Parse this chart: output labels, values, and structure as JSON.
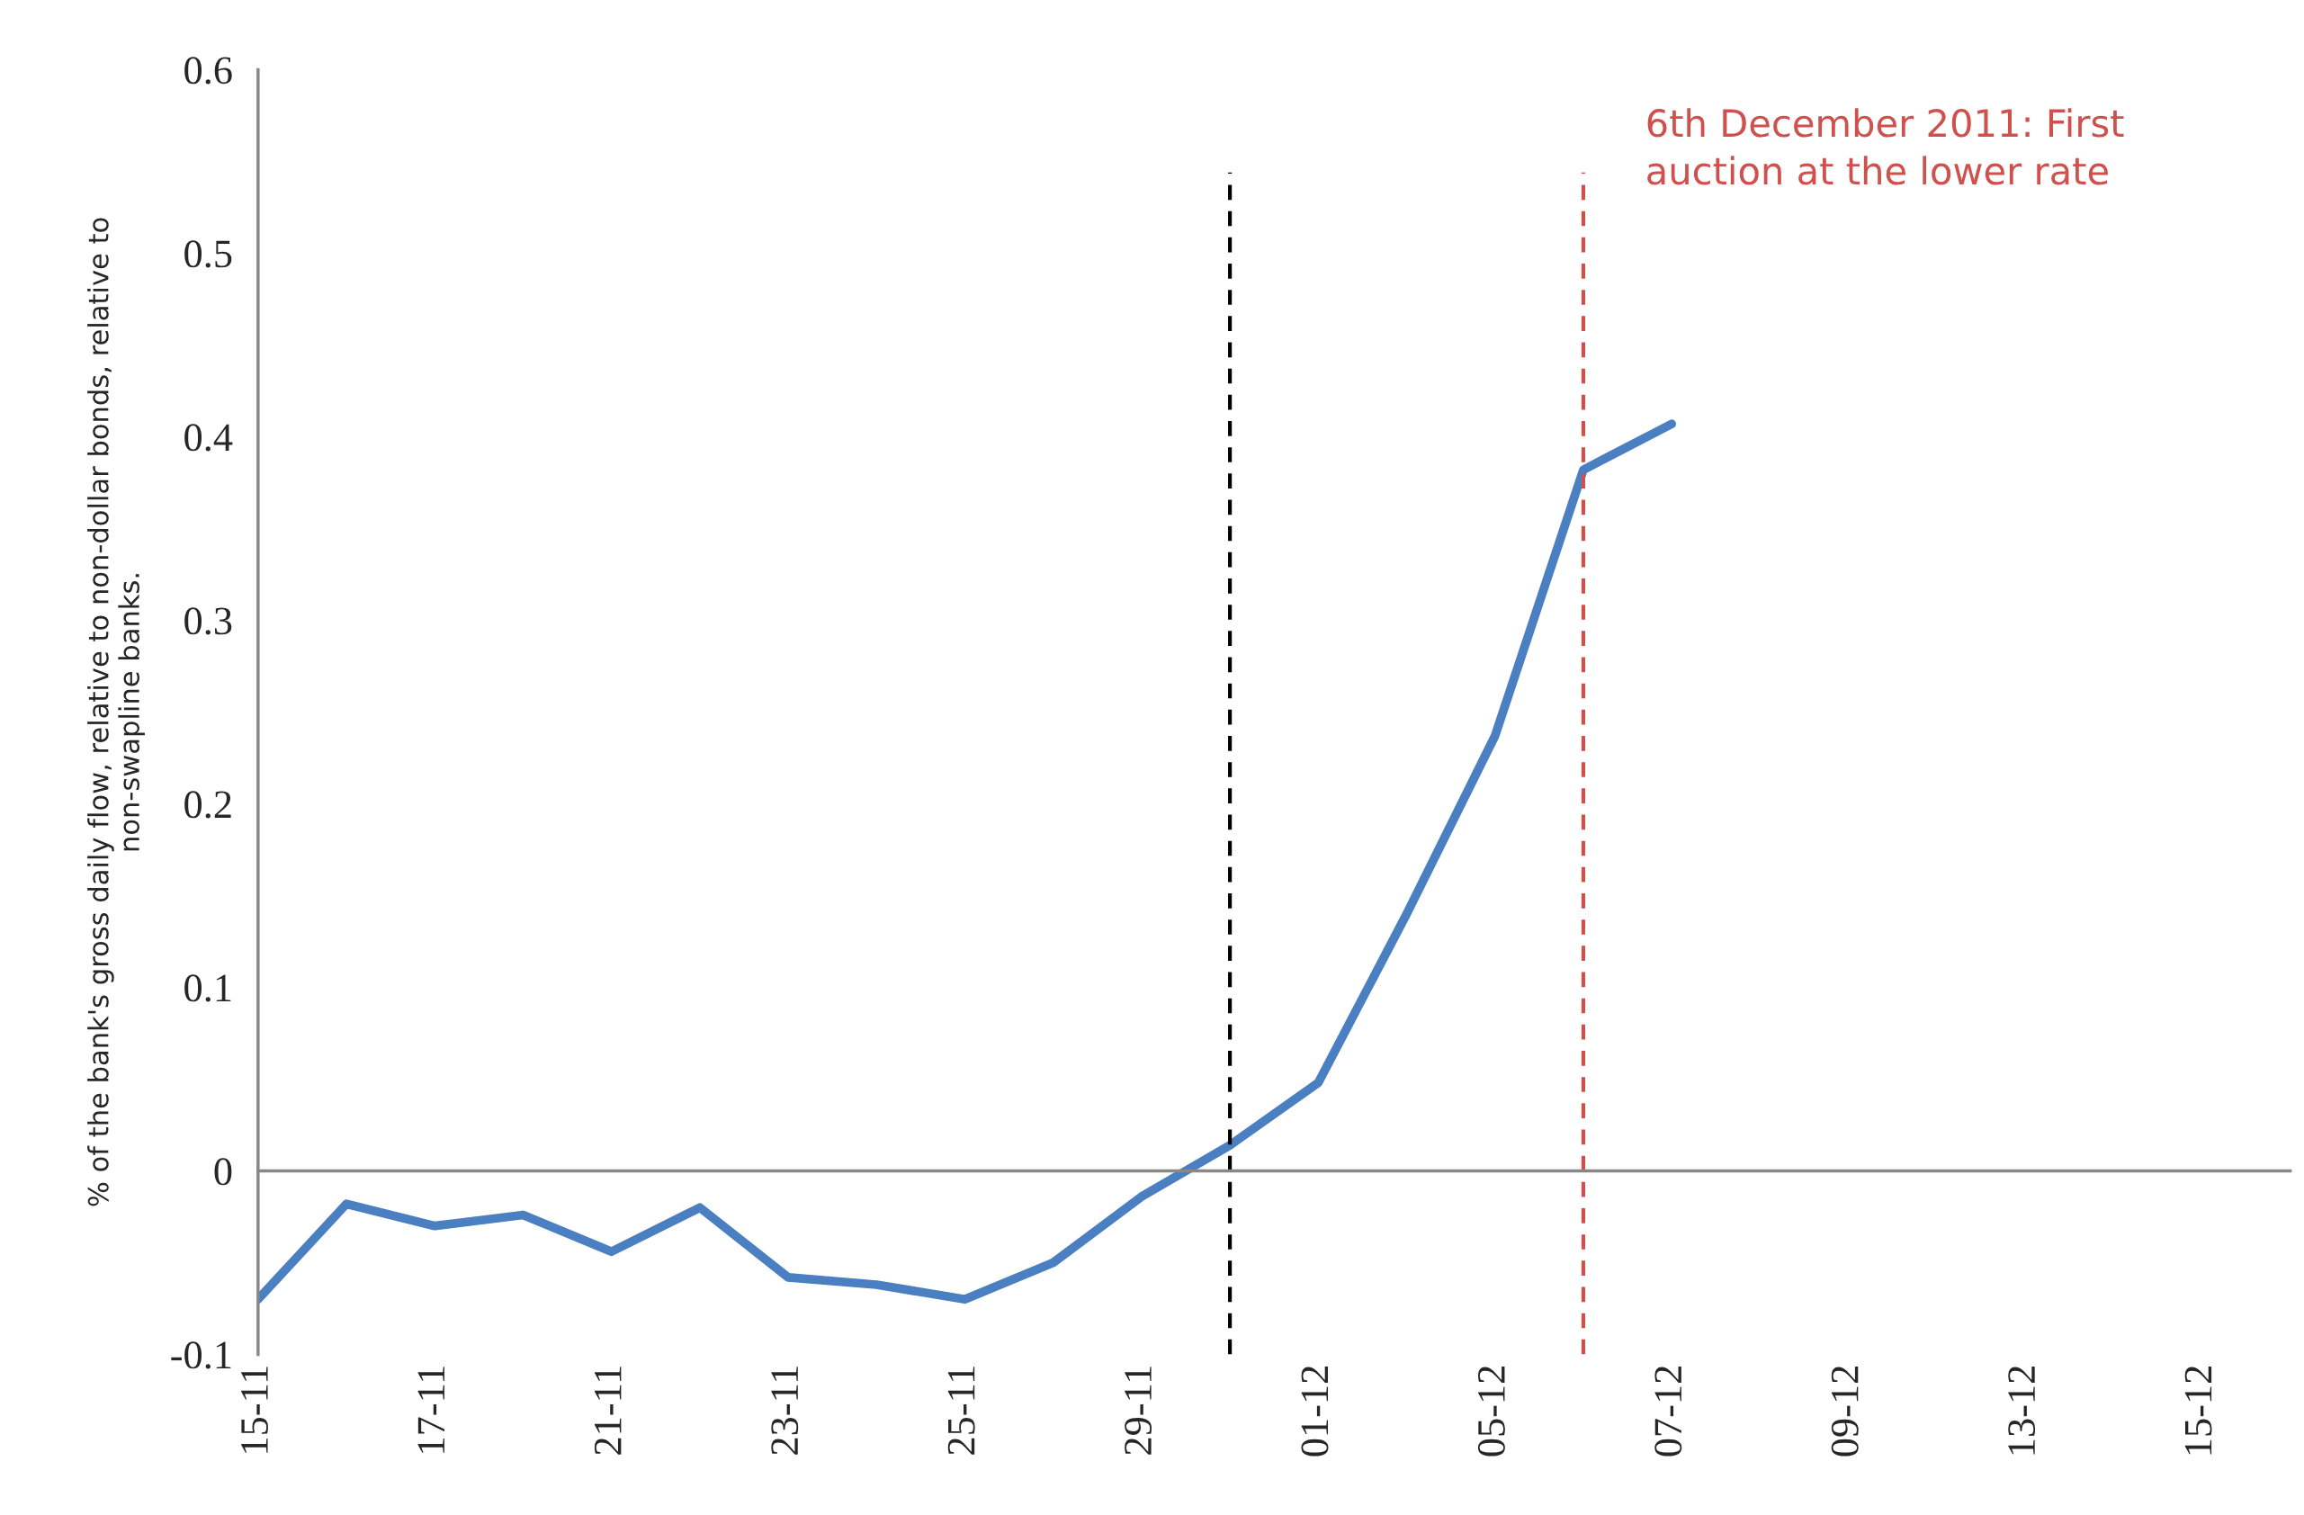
{
  "chart_data": {
    "type": "line",
    "ylabel": "% of the bank's gross daily flow, relative to non-dollar bonds, relative to\nnon-swapline banks.",
    "categories": [
      "15-11",
      null,
      "17-11",
      null,
      "21-11",
      null,
      "23-11",
      null,
      "25-11",
      null,
      "29-11",
      null,
      "01-12",
      null,
      "05-12",
      null,
      "07-12",
      null,
      "09-12",
      null,
      "13-12",
      null,
      "15-12",
      null
    ],
    "series": [
      {
        "color": "#4a7fc1",
        "values": [
          -0.07,
          -0.018,
          -0.03,
          -0.024,
          -0.044,
          -0.02,
          -0.058,
          -0.062,
          -0.07,
          -0.05,
          -0.014,
          0.014,
          0.048,
          0.14,
          0.237,
          0.382,
          0.407,
          null,
          null,
          null,
          null,
          null,
          null,
          null
        ]
      }
    ],
    "ylim": [
      -0.1,
      0.6
    ],
    "yticks": [
      -0.1,
      0,
      0.1,
      0.2,
      0.3,
      0.4,
      0.5,
      0.6
    ],
    "annotations": [
      "6th December 2011: First\nauction at the lower rate"
    ],
    "grid": false,
    "marker": "none",
    "line_style": "solid"
  }
}
